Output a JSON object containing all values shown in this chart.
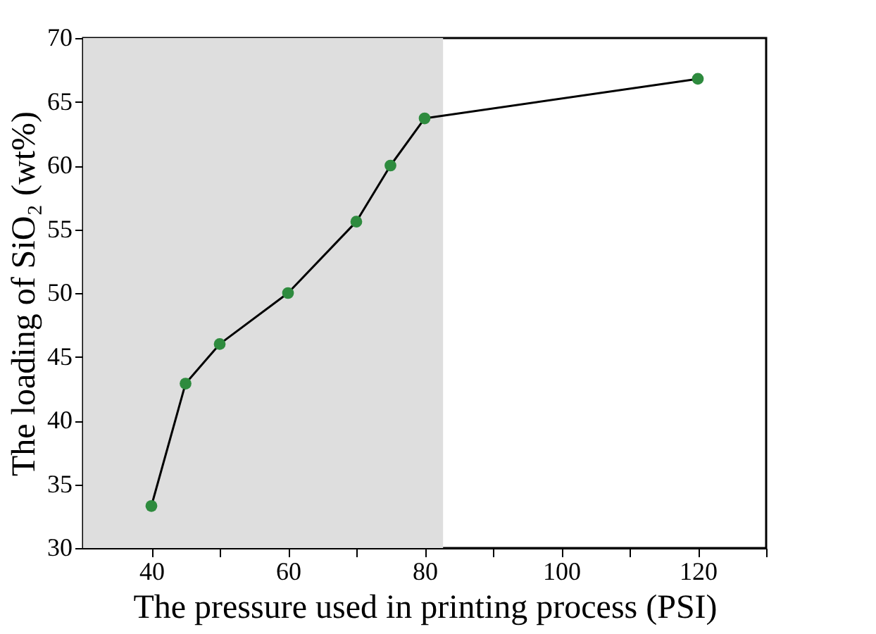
{
  "chart_data": {
    "type": "line",
    "xlabel": "The pressure used in printing process (PSI)",
    "ylabel": "The loading of SiO₂ (wt%)",
    "x": [
      40,
      45,
      50,
      60,
      70,
      75,
      80,
      120
    ],
    "series": [
      {
        "color": "#2e8b3e",
        "values": [
          33.3,
          42.9,
          46.0,
          50.0,
          55.6,
          60.0,
          63.7,
          66.8
        ]
      }
    ],
    "marker": "circle",
    "line_style": "solid",
    "xlim": [
      30,
      130
    ],
    "xticks": [
      40,
      {
        "value": 50,
        "label": null
      },
      60,
      {
        "value": 70,
        "label": null
      },
      80,
      {
        "value": 90,
        "label": null
      },
      100,
      {
        "value": 110,
        "label": null
      },
      120,
      {
        "value": 130,
        "label": null
      }
    ],
    "ylim": [
      30,
      70
    ],
    "yticks": [
      30,
      35,
      40,
      45,
      50,
      55,
      60,
      65,
      70
    ],
    "bands": [
      {
        "axis": "x",
        "from": 30,
        "to": 82.7,
        "color": "#dedede"
      }
    ],
    "grid": false
  }
}
